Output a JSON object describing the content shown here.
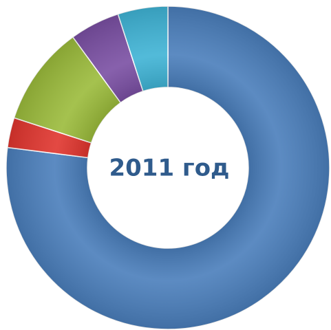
{
  "chart_data": {
    "type": "donut",
    "title": "2011 год",
    "values": [
      77,
      3,
      10,
      5,
      5
    ],
    "colors": [
      "#4a7ebb",
      "#e0352e",
      "#9bbb3b",
      "#7a4fa3",
      "#3fb3d5"
    ]
  }
}
